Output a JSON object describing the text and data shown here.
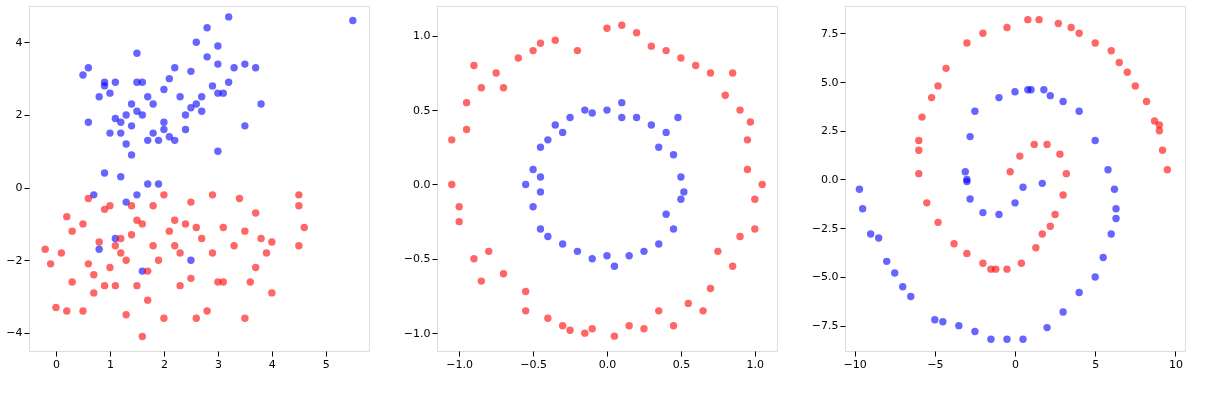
{
  "chart_data": [
    {
      "type": "scatter",
      "marker": "circle",
      "grid": false,
      "xlim": [
        -0.5,
        5.8
      ],
      "ylim": [
        -4.5,
        5.0
      ],
      "xticks": [
        0,
        1,
        2,
        3,
        4,
        5
      ],
      "yticks": [
        {
          "value": -4,
          "label": "−4"
        },
        {
          "value": -2,
          "label": "−2"
        },
        0,
        2,
        4
      ],
      "series": [
        {
          "color": "#0000ff",
          "x": [
            0.5,
            0.6,
            0.9,
            1.1,
            0.8,
            0.9,
            0.6,
            1.0,
            1.2,
            1.1,
            1.2,
            1.3,
            1.4,
            1.5,
            1.5,
            1.5,
            1.6,
            1.7,
            1.7,
            1.6,
            1.8,
            1.9,
            2.0,
            2.0,
            2.1,
            2.2,
            2.1,
            2.2,
            2.3,
            2.4,
            2.5,
            2.5,
            2.6,
            2.6,
            2.7,
            2.7,
            2.8,
            2.9,
            3.0,
            3.0,
            3.0,
            3.0,
            3.1,
            3.2,
            3.2,
            3.3,
            3.5,
            3.5,
            3.7,
            3.8,
            0.7,
            0.8,
            0.9,
            1.1,
            1.2,
            1.3,
            1.4,
            1.3,
            1.5,
            1.7,
            1.9,
            1.6,
            2.5,
            2.8,
            5.5,
            1.0,
            1.4,
            1.8,
            2.4,
            2.0
          ],
          "values": [
            3.1,
            3.3,
            2.9,
            2.9,
            2.5,
            2.8,
            1.8,
            1.5,
            1.5,
            1.9,
            1.8,
            2.0,
            1.7,
            2.1,
            3.7,
            2.9,
            2.9,
            2.5,
            1.3,
            2.0,
            1.5,
            1.3,
            2.7,
            1.6,
            1.4,
            1.3,
            3.0,
            3.3,
            2.5,
            2.0,
            2.2,
            3.2,
            2.3,
            4.0,
            2.1,
            2.5,
            3.6,
            2.8,
            3.4,
            2.6,
            3.9,
            1.0,
            2.6,
            4.7,
            2.9,
            3.3,
            3.4,
            1.7,
            3.3,
            2.3,
            -0.2,
            -1.7,
            0.4,
            -1.4,
            0.3,
            -0.4,
            0.9,
            1.2,
            -0.2,
            0.1,
            0.1,
            -2.3,
            -2.0,
            4.4,
            4.6,
            2.6,
            2.3,
            2.3,
            1.6,
            1.8
          ]
        },
        {
          "color": "#ff0000",
          "x": [
            -0.2,
            -0.1,
            0.0,
            0.1,
            0.2,
            0.2,
            0.3,
            0.3,
            0.5,
            0.5,
            0.6,
            0.6,
            0.7,
            0.7,
            0.8,
            0.9,
            0.9,
            1.0,
            1.0,
            1.1,
            1.1,
            1.2,
            1.3,
            1.3,
            1.4,
            1.4,
            1.5,
            1.5,
            1.6,
            1.6,
            1.7,
            1.7,
            1.8,
            1.8,
            1.9,
            2.0,
            2.0,
            2.1,
            2.2,
            2.3,
            2.3,
            2.4,
            2.5,
            2.5,
            2.6,
            2.7,
            2.8,
            2.9,
            2.9,
            3.0,
            3.1,
            3.1,
            3.3,
            3.4,
            3.5,
            3.5,
            3.6,
            3.7,
            3.7,
            3.9,
            4.0,
            4.0,
            4.5,
            4.5,
            4.6,
            4.5,
            3.8,
            2.2,
            1.2,
            2.6
          ],
          "values": [
            -1.7,
            -2.1,
            -3.3,
            -1.8,
            -0.8,
            -3.4,
            -2.6,
            -1.2,
            -3.4,
            -1.0,
            -0.3,
            -2.1,
            -2.4,
            -2.9,
            -1.5,
            -0.6,
            -2.7,
            -2.2,
            -0.5,
            -1.6,
            -2.7,
            -1.8,
            -2.0,
            -3.5,
            -0.5,
            -1.3,
            -2.7,
            -0.9,
            -1.0,
            -4.1,
            -2.3,
            -3.1,
            -0.5,
            -1.6,
            -2.0,
            -0.2,
            -3.6,
            -1.2,
            -1.6,
            -1.8,
            -2.7,
            -1.0,
            -0.4,
            -2.5,
            -3.6,
            -1.4,
            -3.4,
            -0.2,
            -1.8,
            -2.6,
            -1.1,
            -2.6,
            -1.6,
            -0.3,
            -1.2,
            -3.6,
            -2.6,
            -0.7,
            -2.2,
            -1.8,
            -1.5,
            -2.9,
            -0.5,
            -1.6,
            -1.1,
            -0.2,
            -1.4,
            -0.9,
            -1.4,
            -1.1
          ]
        }
      ]
    },
    {
      "type": "scatter",
      "marker": "circle",
      "grid": false,
      "xlim": [
        -1.15,
        1.15
      ],
      "ylim": [
        -1.12,
        1.2
      ],
      "xticks": [
        {
          "value": -1,
          "label": "−1.0"
        },
        {
          "value": -0.5,
          "label": "−0.5"
        },
        {
          "value": 0,
          "label": "0.0"
        },
        0.5,
        {
          "value": 1,
          "label": "1.0"
        }
      ],
      "yticks": [
        {
          "value": -1,
          "label": "−1.0"
        },
        {
          "value": -0.5,
          "label": "−0.5"
        },
        {
          "value": 0,
          "label": "0.0"
        },
        0.5,
        {
          "value": 1,
          "label": "1.0"
        }
      ],
      "series": [
        {
          "color": "#ff0000",
          "x": [
            -1.05,
            -1.05,
            -1.0,
            -1.0,
            -0.95,
            -0.95,
            -0.9,
            -0.9,
            -0.85,
            -0.85,
            -0.8,
            -0.75,
            -0.7,
            -0.7,
            -0.6,
            -0.55,
            -0.55,
            -0.45,
            -0.4,
            -0.35,
            -0.3,
            -0.2,
            -0.15,
            -0.1,
            0.0,
            0.05,
            0.1,
            0.15,
            0.2,
            0.25,
            0.3,
            0.4,
            0.45,
            0.5,
            0.55,
            0.6,
            0.7,
            0.7,
            0.75,
            0.8,
            0.85,
            0.9,
            0.9,
            0.95,
            0.95,
            1.0,
            1.0,
            1.05,
            0.97,
            -0.5,
            0.35,
            -0.25,
            0.65,
            0.85
          ],
          "values": [
            0.0,
            0.3,
            -0.15,
            -0.25,
            0.55,
            0.37,
            -0.5,
            0.8,
            0.65,
            -0.65,
            -0.45,
            0.75,
            0.65,
            -0.6,
            0.85,
            -0.72,
            -0.85,
            0.95,
            -0.9,
            0.97,
            -0.95,
            0.9,
            -1.0,
            -0.97,
            1.05,
            -1.02,
            1.07,
            -0.95,
            1.02,
            -0.97,
            0.93,
            0.9,
            -0.95,
            0.85,
            -0.8,
            0.8,
            -0.7,
            0.75,
            -0.45,
            0.6,
            -0.55,
            0.5,
            -0.35,
            0.3,
            0.1,
            -0.1,
            -0.3,
            0.0,
            0.42,
            0.9,
            -0.85,
            -0.98,
            -0.85,
            0.75
          ]
        },
        {
          "color": "#0000ff",
          "x": [
            -0.55,
            -0.5,
            -0.5,
            -0.45,
            -0.45,
            -0.4,
            -0.4,
            -0.35,
            -0.3,
            -0.25,
            -0.2,
            -0.15,
            -0.1,
            0.0,
            0.05,
            0.1,
            0.15,
            0.2,
            0.25,
            0.3,
            0.35,
            0.4,
            0.45,
            0.45,
            0.5,
            0.5,
            0.52,
            0.48,
            -0.45,
            -0.3,
            0.0,
            0.4,
            -0.45,
            0.1,
            -0.1,
            0.35
          ],
          "values": [
            0.0,
            0.1,
            -0.15,
            0.25,
            -0.3,
            0.3,
            -0.35,
            0.4,
            -0.4,
            0.45,
            -0.45,
            0.5,
            -0.5,
            0.5,
            -0.55,
            0.55,
            -0.48,
            0.45,
            -0.45,
            0.4,
            -0.4,
            0.35,
            -0.3,
            0.2,
            0.05,
            -0.1,
            -0.05,
            0.45,
            0.05,
            0.35,
            -0.48,
            -0.2,
            -0.05,
            0.45,
            0.48,
            0.25
          ]
        }
      ]
    },
    {
      "type": "scatter",
      "marker": "circle",
      "grid": false,
      "xlim": [
        -10.6,
        10.6
      ],
      "ylim": [
        -8.8,
        8.9
      ],
      "xticks": [
        {
          "value": -10,
          "label": "−10"
        },
        {
          "value": -5,
          "label": "−5"
        },
        0,
        5,
        10
      ],
      "yticks": [
        {
          "value": -7.5,
          "label": "−7.5"
        },
        {
          "value": -5,
          "label": "−5.0"
        },
        {
          "value": -2.5,
          "label": "−2.5"
        },
        {
          "value": 0,
          "label": "0.0"
        },
        2.5,
        {
          "value": 5,
          "label": "5.0"
        },
        7.5
      ],
      "series": [
        {
          "color": "#ff0000",
          "x": [
            -0.3,
            0.3,
            1.2,
            2.0,
            2.8,
            3.2,
            3.0,
            2.5,
            1.7,
            1.3,
            0.4,
            -0.5,
            -1.2,
            -2.0,
            -3.0,
            -3.8,
            -4.8,
            -5.5,
            -6.0,
            -6.0,
            -5.8,
            -5.2,
            -4.3,
            -3.0,
            -2.0,
            -0.5,
            0.8,
            1.5,
            2.7,
            4.0,
            5.0,
            6.0,
            7.0,
            7.5,
            8.2,
            8.7,
            9.0,
            9.2,
            9.5,
            9.0,
            6.5,
            -4.8,
            -6.0,
            3.5,
            -1.5,
            2.2
          ],
          "values": [
            0.4,
            1.2,
            1.8,
            1.8,
            1.3,
            0.3,
            -0.8,
            -1.8,
            -2.8,
            -3.5,
            -4.3,
            -4.6,
            -4.6,
            -4.3,
            -3.8,
            -3.3,
            -2.2,
            -1.2,
            0.3,
            1.5,
            3.2,
            4.2,
            5.7,
            7.0,
            7.5,
            7.8,
            8.2,
            8.2,
            8.0,
            7.5,
            7.0,
            6.6,
            5.5,
            4.8,
            4.0,
            3.0,
            2.5,
            1.5,
            0.5,
            2.8,
            6.0,
            4.8,
            2.0,
            7.8,
            -4.6,
            -2.4
          ]
        },
        {
          "color": "#0000ff",
          "x": [
            0.5,
            0.0,
            -1.0,
            -2.0,
            -2.8,
            -3.0,
            -3.1,
            -2.8,
            -2.5,
            -1.0,
            0.0,
            0.8,
            1.8,
            3.0,
            4.0,
            5.0,
            5.8,
            6.2,
            6.3,
            6.0,
            5.5,
            5.0,
            4.0,
            3.0,
            2.0,
            0.5,
            -0.5,
            -1.5,
            -2.5,
            -3.5,
            -5.0,
            -6.5,
            -7.0,
            -8.0,
            -8.5,
            -9.0,
            -9.5,
            -9.7,
            -7.5,
            -4.5,
            6.3,
            1.7,
            1.0,
            -3.0,
            2.2
          ],
          "values": [
            -0.4,
            -1.2,
            -1.8,
            -1.7,
            -1.0,
            0.0,
            0.4,
            2.2,
            3.5,
            4.2,
            4.5,
            4.6,
            4.6,
            4.0,
            3.5,
            2.0,
            0.5,
            -0.5,
            -1.5,
            -2.8,
            -4.0,
            -5.0,
            -5.8,
            -6.8,
            -7.6,
            -8.2,
            -8.2,
            -8.2,
            -7.8,
            -7.5,
            -7.2,
            -6.0,
            -5.5,
            -4.2,
            -3.0,
            -2.8,
            -1.5,
            -0.5,
            -4.8,
            -7.3,
            -2.0,
            -0.2,
            4.6,
            -0.1,
            4.3
          ]
        }
      ]
    }
  ]
}
